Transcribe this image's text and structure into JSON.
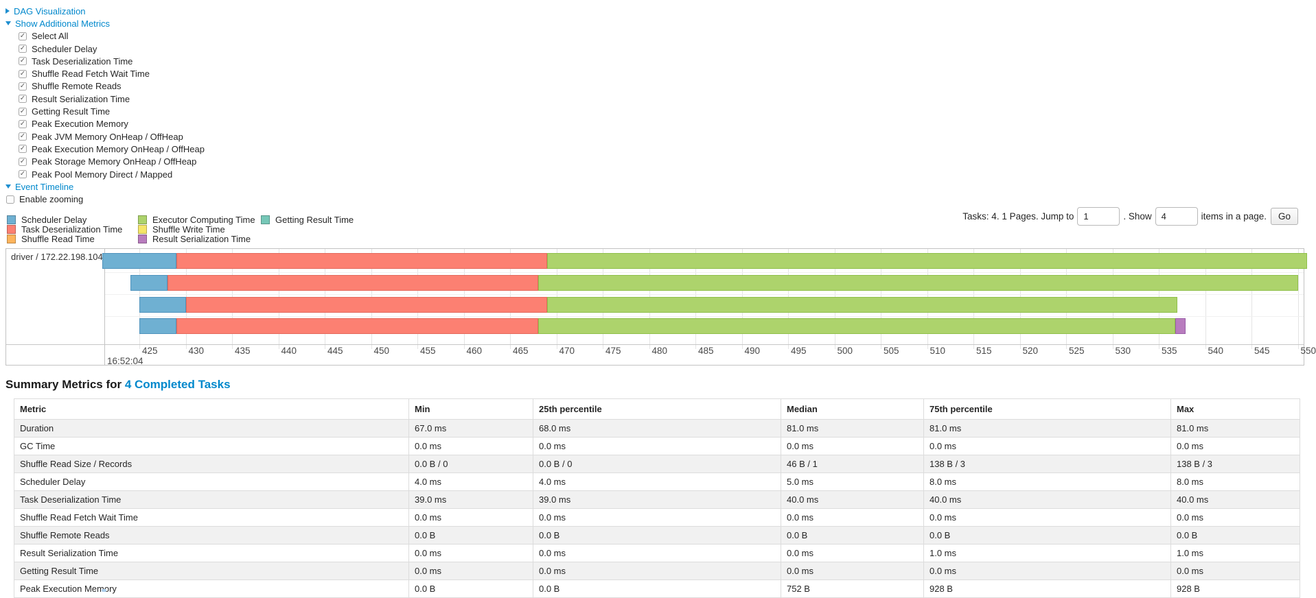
{
  "links": {
    "dag_visualization": "DAG Visualization",
    "show_additional_metrics": "Show Additional Metrics",
    "event_timeline": "Event Timeline"
  },
  "metric_checkboxes": [
    "Select All",
    "Scheduler Delay",
    "Task Deserialization Time",
    "Shuffle Read Fetch Wait Time",
    "Shuffle Remote Reads",
    "Result Serialization Time",
    "Getting Result Time",
    "Peak Execution Memory",
    "Peak JVM Memory OnHeap / OffHeap",
    "Peak Execution Memory OnHeap / OffHeap",
    "Peak Storage Memory OnHeap / OffHeap",
    "Peak Pool Memory Direct / Mapped"
  ],
  "enable_zooming": "Enable zooming",
  "colors": {
    "link": "#0088cc",
    "scheduler_delay": "#6FB0D2",
    "task_deserialization": "#FC8072",
    "shuffle_read": "#FDB45C",
    "executor_computing": "#ADD36C",
    "shuffle_write": "#F5E569",
    "result_serialization": "#B87CBE",
    "getting_result": "#76C7B7"
  },
  "legend": {
    "rows": [
      [
        {
          "label": "Scheduler Delay",
          "key": "scheduler_delay"
        },
        {
          "label": "Executor Computing Time",
          "key": "executor_computing"
        },
        {
          "label": "Getting Result Time",
          "key": "getting_result"
        }
      ],
      [
        {
          "label": "Task Deserialization Time",
          "key": "task_deserialization"
        },
        {
          "label": "Shuffle Write Time",
          "key": "shuffle_write"
        }
      ],
      [
        {
          "label": "Shuffle Read Time",
          "key": "shuffle_read"
        },
        {
          "label": "Result Serialization Time",
          "key": "result_serialization"
        }
      ]
    ]
  },
  "pagination": {
    "tasks_text": "Tasks: 4. 1 Pages. Jump to",
    "jump_value": "1",
    "show_text": ". Show",
    "show_value": "4",
    "suffix_text": "items in a page.",
    "go_label": "Go"
  },
  "chart_data": {
    "type": "timeline-gantt",
    "group_label": "driver / 172.22.198.104",
    "x_axis": {
      "unit": "ms within second",
      "tick_start": 425,
      "tick_end": 550,
      "tick_step": 5,
      "major_label": "16:52:04"
    },
    "tasks": [
      {
        "segments": [
          {
            "type": "scheduler_delay",
            "start": 421,
            "end": 429
          },
          {
            "type": "task_deserialization",
            "start": 429,
            "end": 469
          },
          {
            "type": "executor_computing",
            "start": 469,
            "end": 551
          }
        ]
      },
      {
        "segments": [
          {
            "type": "scheduler_delay",
            "start": 424,
            "end": 428
          },
          {
            "type": "task_deserialization",
            "start": 428,
            "end": 468
          },
          {
            "type": "executor_computing",
            "start": 468,
            "end": 550
          }
        ]
      },
      {
        "segments": [
          {
            "type": "scheduler_delay",
            "start": 425,
            "end": 430
          },
          {
            "type": "task_deserialization",
            "start": 430,
            "end": 469
          },
          {
            "type": "executor_computing",
            "start": 469,
            "end": 537
          }
        ]
      },
      {
        "segments": [
          {
            "type": "scheduler_delay",
            "start": 425,
            "end": 429
          },
          {
            "type": "task_deserialization",
            "start": 429,
            "end": 468
          },
          {
            "type": "executor_computing",
            "start": 468,
            "end": 536.8
          },
          {
            "type": "result_serialization",
            "start": 536.8,
            "end": 537.9
          }
        ]
      }
    ]
  },
  "summary": {
    "heading_prefix": "Summary Metrics for ",
    "heading_link": "4 Completed Tasks"
  },
  "table": {
    "columns": [
      "Metric",
      "Min",
      "25th percentile",
      "Median",
      "75th percentile",
      "Max"
    ],
    "rows": [
      {
        "metric": "Duration",
        "values": [
          "67.0 ms",
          "68.0 ms",
          "81.0 ms",
          "81.0 ms",
          "81.0 ms"
        ]
      },
      {
        "metric": "GC Time",
        "values": [
          "0.0 ms",
          "0.0 ms",
          "0.0 ms",
          "0.0 ms",
          "0.0 ms"
        ]
      },
      {
        "metric": "Shuffle Read Size / Records",
        "values": [
          "0.0 B / 0",
          "0.0 B / 0",
          "46 B / 1",
          "138 B / 3",
          "138 B / 3"
        ]
      },
      {
        "metric": "Scheduler Delay",
        "values": [
          "4.0 ms",
          "4.0 ms",
          "5.0 ms",
          "8.0 ms",
          "8.0 ms"
        ]
      },
      {
        "metric": "Task Deserialization Time",
        "values": [
          "39.0 ms",
          "39.0 ms",
          "40.0 ms",
          "40.0 ms",
          "40.0 ms"
        ]
      },
      {
        "metric": "Shuffle Read Fetch Wait Time",
        "values": [
          "0.0 ms",
          "0.0 ms",
          "0.0 ms",
          "0.0 ms",
          "0.0 ms"
        ]
      },
      {
        "metric": "Shuffle Remote Reads",
        "values": [
          "0.0 B",
          "0.0 B",
          "0.0 B",
          "0.0 B",
          "0.0 B"
        ]
      },
      {
        "metric": "Result Serialization Time",
        "values": [
          "0.0 ms",
          "0.0 ms",
          "0.0 ms",
          "1.0 ms",
          "1.0 ms"
        ]
      },
      {
        "metric": "Getting Result Time",
        "values": [
          "0.0 ms",
          "0.0 ms",
          "0.0 ms",
          "0.0 ms",
          "0.0 ms"
        ]
      },
      {
        "metric": "Peak Execution Memory",
        "values": [
          "0.0 B",
          "0.0 B",
          "752 B",
          "928 B",
          "928 B"
        ]
      }
    ]
  }
}
